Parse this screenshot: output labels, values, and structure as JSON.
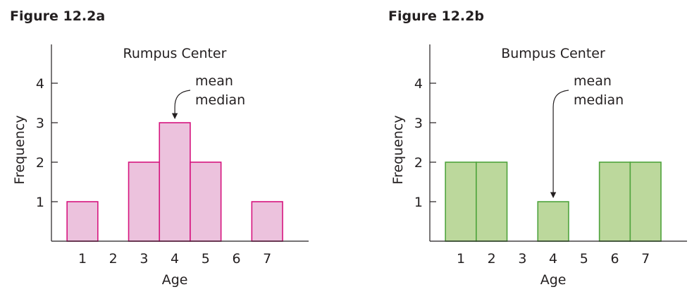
{
  "figures": [
    {
      "label": "Figure 12.2a"
    },
    {
      "label": "Figure 12.2b"
    }
  ],
  "chart_data": [
    {
      "type": "bar",
      "title": "Rumpus Center",
      "xlabel": "Age",
      "ylabel": "Frequency",
      "categories": [
        1,
        2,
        3,
        4,
        5,
        6,
        7
      ],
      "values": [
        1,
        0,
        2,
        3,
        2,
        0,
        1
      ],
      "ylim": [
        0,
        5
      ],
      "yticks": [
        1,
        2,
        3,
        4
      ],
      "grid": false,
      "colors": {
        "fill": "#ecc2dd",
        "stroke": "#d6157f"
      },
      "annotation": {
        "lines": [
          "mean",
          "median"
        ],
        "points_to": 4
      }
    },
    {
      "type": "bar",
      "title": "Bumpus Center",
      "xlabel": "Age",
      "ylabel": "Frequency",
      "categories": [
        1,
        2,
        3,
        4,
        5,
        6,
        7
      ],
      "values": [
        2,
        2,
        0,
        1,
        0,
        2,
        2
      ],
      "ylim": [
        0,
        5
      ],
      "yticks": [
        1,
        2,
        3,
        4
      ],
      "grid": false,
      "colors": {
        "fill": "#bcd89c",
        "stroke": "#4fa33c"
      },
      "annotation": {
        "lines": [
          "mean",
          "median"
        ],
        "points_to": 4
      }
    }
  ]
}
